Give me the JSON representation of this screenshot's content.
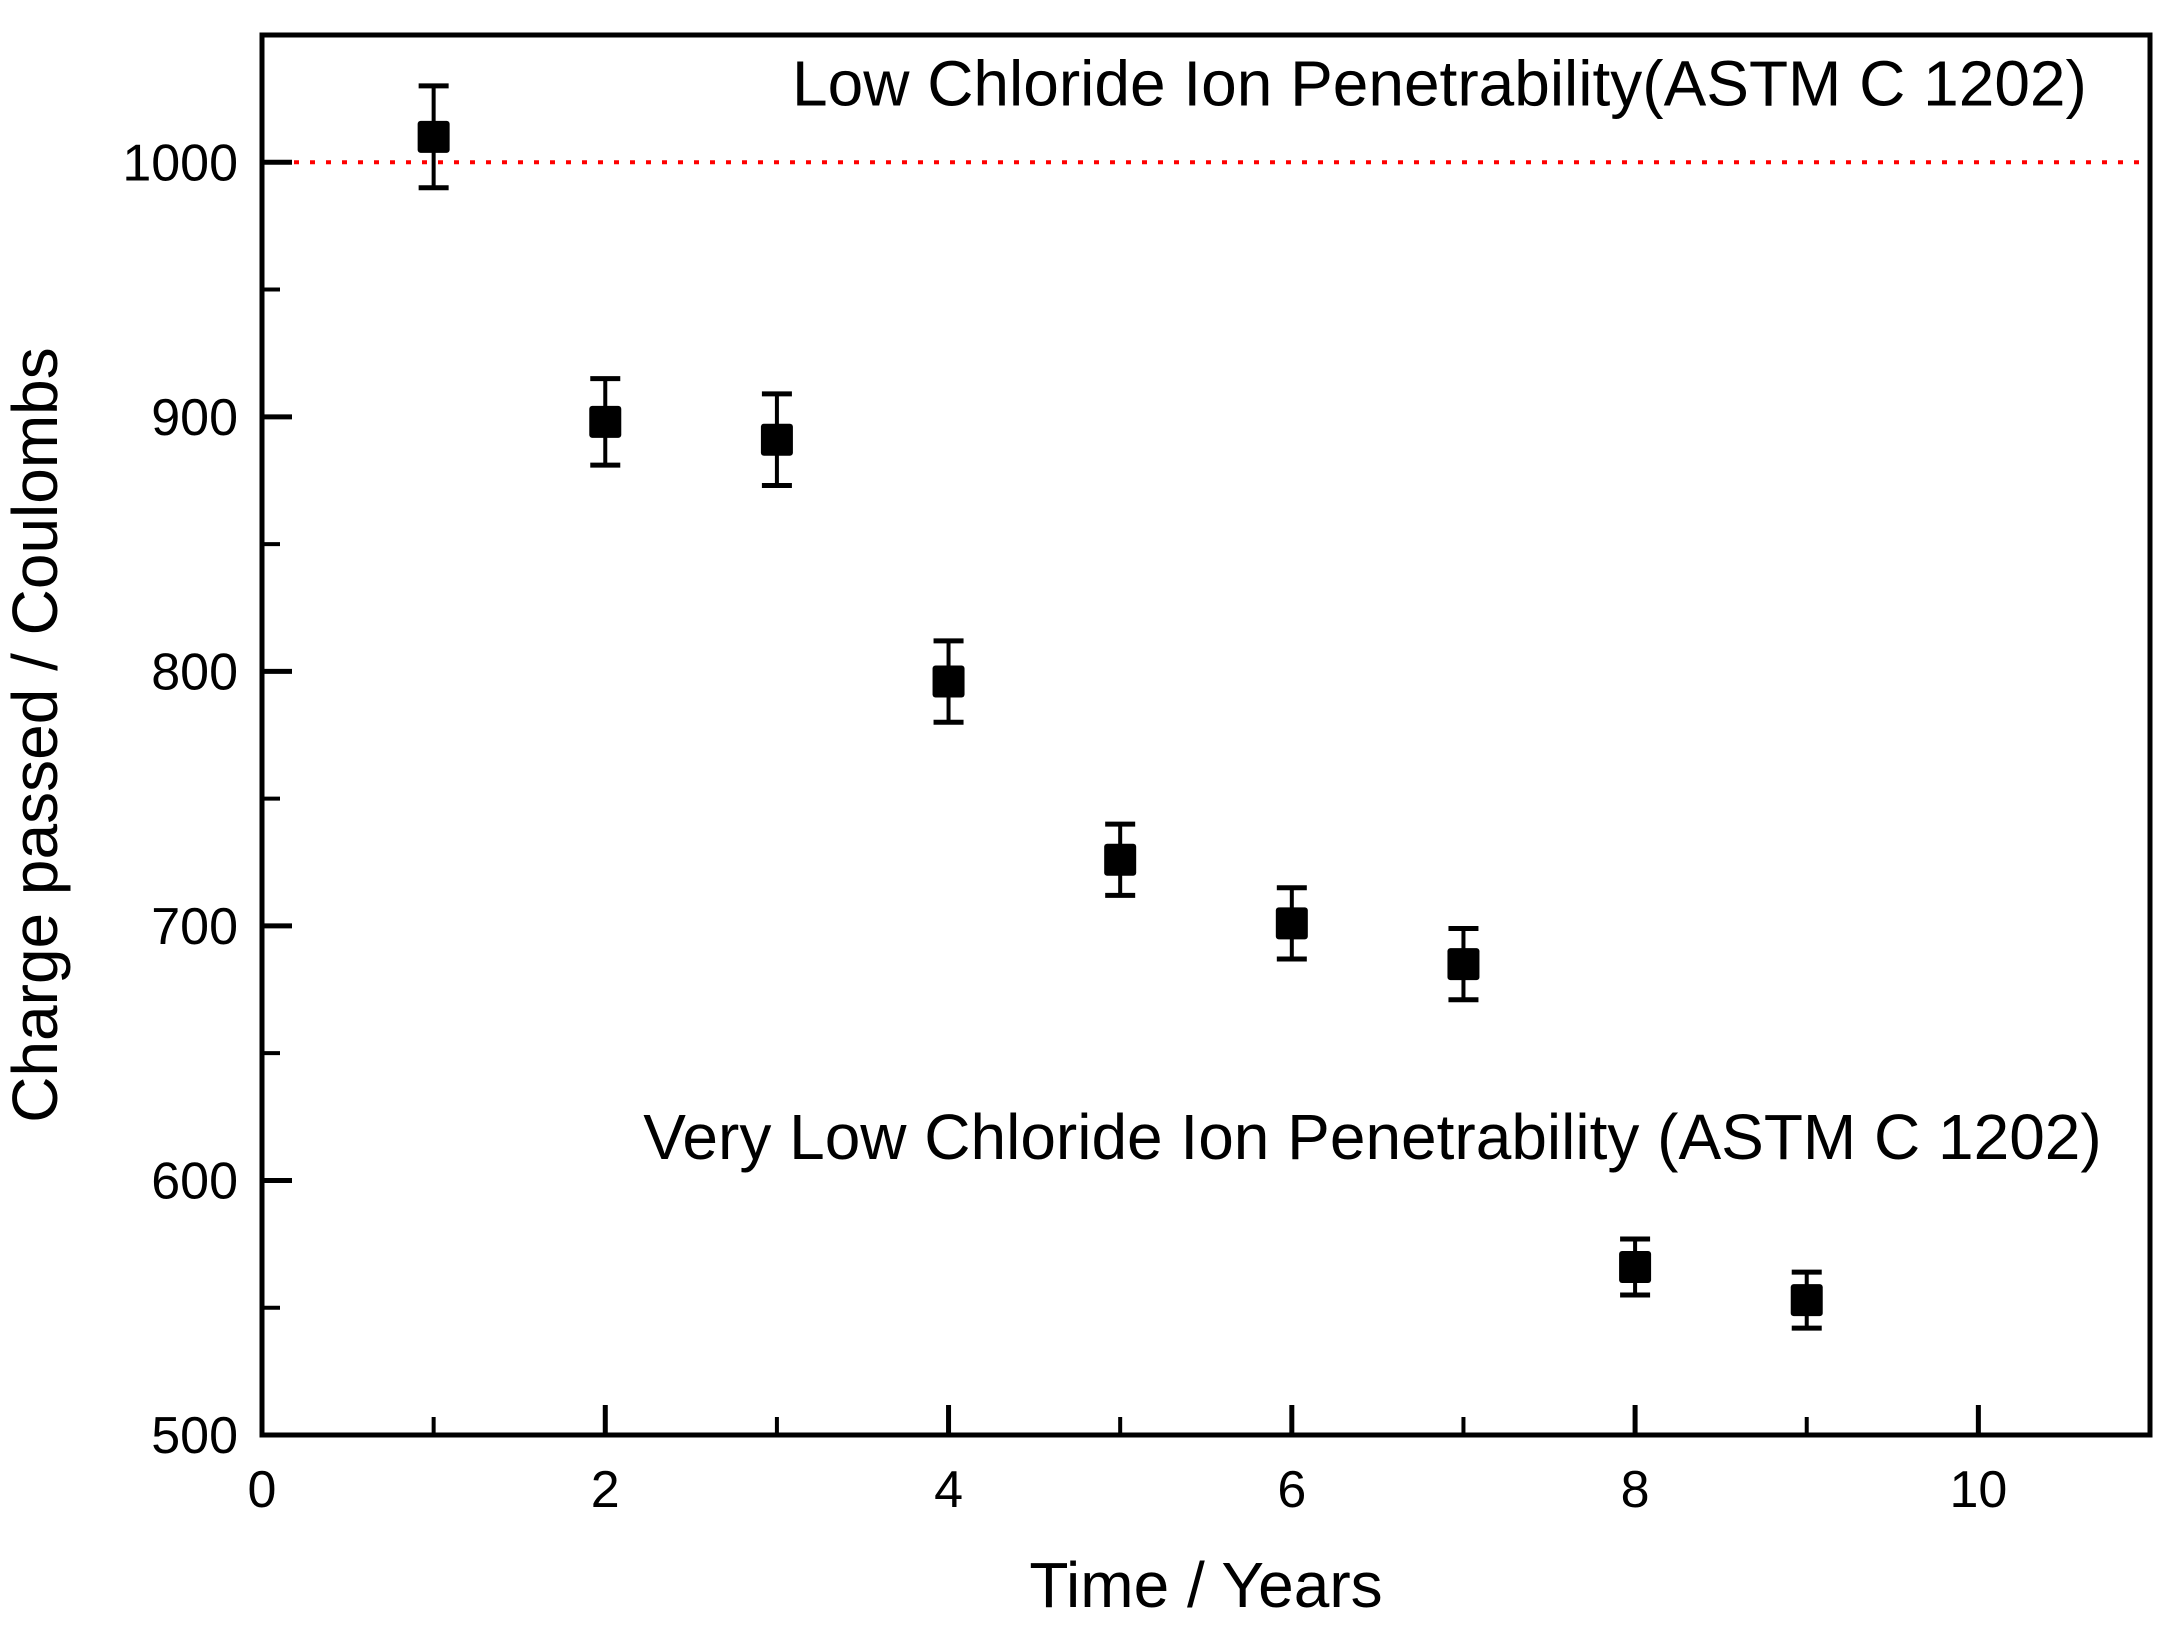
{
  "figure": {
    "background_color": "#ffffff",
    "axis_color": "#000000"
  },
  "chart_data": {
    "type": "scatter",
    "title": "",
    "xlabel": "Time / Years",
    "ylabel": "Charge passed / Coulombs",
    "xlim": [
      0,
      11
    ],
    "ylim": [
      500,
      1050
    ],
    "grid": false,
    "legend": "none",
    "x_major_ticks": [
      0,
      2,
      4,
      6,
      8,
      10
    ],
    "x_major_tick_labels": [
      "0",
      "2",
      "4",
      "6",
      "8",
      "10"
    ],
    "x_minor_ticks": [
      1,
      3,
      5,
      7,
      9
    ],
    "y_major_ticks": [
      500,
      600,
      700,
      800,
      900,
      1000
    ],
    "y_major_tick_labels": [
      "500",
      "600",
      "700",
      "800",
      "900",
      "1000"
    ],
    "y_minor_ticks": [
      550,
      650,
      750,
      850,
      950
    ],
    "series": [
      {
        "name": "charge-passed",
        "marker": "square",
        "marker_color": "#000000",
        "x": [
          1,
          2,
          3,
          4,
          5,
          6,
          7,
          8,
          9
        ],
        "y": [
          1010,
          898,
          891,
          796,
          726,
          701,
          685,
          566,
          553
        ],
        "yerr": [
          20,
          17,
          18,
          16,
          14,
          14,
          14,
          11,
          11
        ]
      }
    ],
    "reference_line": {
      "y": 1000,
      "color": "#ff0000",
      "style": "dotted"
    },
    "annotations": [
      {
        "id": "low-penetrability",
        "text": "Low Chloride Ion Penetrability(ASTM C 1202)",
        "x": 6.86,
        "y": 1031
      },
      {
        "id": "very-low-penetrability",
        "text": "Very Low Chloride Ion Penetrability (ASTM C 1202)",
        "x": 6.47,
        "y": 617
      }
    ]
  }
}
